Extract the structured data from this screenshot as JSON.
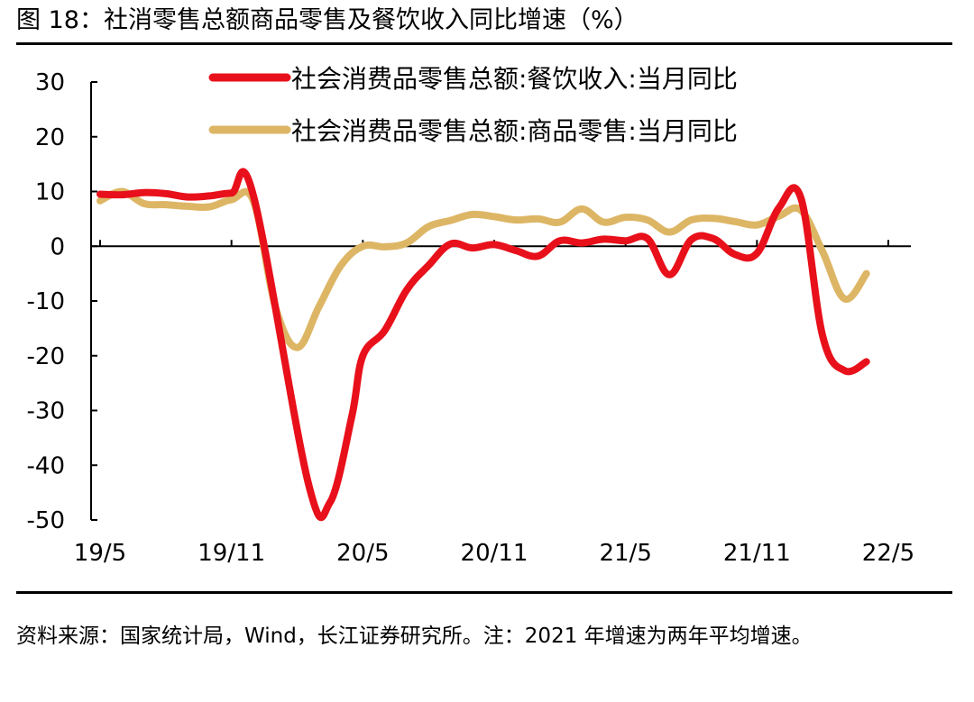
{
  "figure": {
    "title": "图 18：社消零售总额商品零售及餐饮收入同比增速（%）",
    "source": "资料来源：国家统计局，Wind，长江证券研究所。注：2021 年增速为两年平均增速。"
  },
  "chart_data": {
    "type": "line",
    "ylim": [
      -50,
      30
    ],
    "yticks": [
      30,
      20,
      10,
      0,
      -10,
      -20,
      -30,
      -40,
      -50
    ],
    "xlim": [
      0,
      36
    ],
    "xticks": [
      {
        "pos": 0,
        "label": "19/5"
      },
      {
        "pos": 6,
        "label": "19/11"
      },
      {
        "pos": 12,
        "label": "20/5"
      },
      {
        "pos": 18,
        "label": "20/11"
      },
      {
        "pos": 24,
        "label": "21/5"
      },
      {
        "pos": 30,
        "label": "21/11"
      },
      {
        "pos": 36,
        "label": "22/5"
      }
    ],
    "legend_position": "top",
    "series": [
      {
        "name": "社会消费品零售总额:餐饮收入:当月同比",
        "color": "#e8101a",
        "points": [
          [
            0,
            9.5
          ],
          [
            1,
            9.4
          ],
          [
            2,
            9.8
          ],
          [
            3,
            9.6
          ],
          [
            4,
            9.0
          ],
          [
            5,
            9.2
          ],
          [
            6,
            9.7
          ],
          [
            7,
            9.3
          ],
          [
            9.5,
            -43.1
          ],
          [
            10.5,
            -46.8
          ],
          [
            11.5,
            -31.0
          ],
          [
            12,
            -20.0
          ],
          [
            13,
            -15.4
          ],
          [
            14,
            -8.0
          ],
          [
            15,
            -3.5
          ],
          [
            16,
            0.4
          ],
          [
            17,
            -0.3
          ],
          [
            18,
            0.3
          ],
          [
            19,
            -0.8
          ],
          [
            20,
            -1.8
          ],
          [
            21,
            1.0
          ],
          [
            22,
            0.6
          ],
          [
            23,
            1.3
          ],
          [
            24,
            1.0
          ],
          [
            25,
            1.4
          ],
          [
            26,
            -5.2
          ],
          [
            27,
            1.2
          ],
          [
            28,
            1.4
          ],
          [
            29,
            -1.5
          ],
          [
            30,
            -1.3
          ],
          [
            31,
            7.0
          ],
          [
            32,
            8.9
          ],
          [
            33,
            -16.4
          ],
          [
            34,
            -22.7
          ],
          [
            35,
            -21.1
          ]
        ]
      },
      {
        "name": "社会消费品零售总额:商品零售:当月同比",
        "color": "#ddb665",
        "points": [
          [
            0,
            8.3
          ],
          [
            1,
            10.0
          ],
          [
            2,
            7.8
          ],
          [
            3,
            7.6
          ],
          [
            4,
            7.3
          ],
          [
            5,
            7.2
          ],
          [
            6,
            8.5
          ],
          [
            7,
            8.3
          ],
          [
            8,
            -11.0
          ],
          [
            9,
            -18.5
          ],
          [
            10,
            -11.0
          ],
          [
            11,
            -3.5
          ],
          [
            12,
            0.0
          ],
          [
            13,
            -0.1
          ],
          [
            14,
            0.6
          ],
          [
            15,
            3.6
          ],
          [
            16,
            4.7
          ],
          [
            17,
            5.8
          ],
          [
            18,
            5.4
          ],
          [
            19,
            4.8
          ],
          [
            20,
            5.0
          ],
          [
            21,
            4.4
          ],
          [
            22,
            6.8
          ],
          [
            23,
            4.4
          ],
          [
            24,
            5.3
          ],
          [
            25,
            4.8
          ],
          [
            26,
            2.6
          ],
          [
            27,
            4.8
          ],
          [
            28,
            5.1
          ],
          [
            29,
            4.5
          ],
          [
            30,
            3.9
          ],
          [
            31,
            5.5
          ],
          [
            32,
            6.6
          ],
          [
            33,
            -1.0
          ],
          [
            34,
            -9.6
          ],
          [
            35,
            -5.0
          ]
        ]
      }
    ]
  }
}
